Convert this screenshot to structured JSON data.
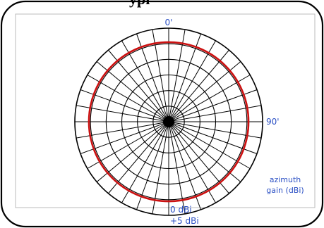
{
  "colors": {
    "frame": "#000000",
    "grid": "#000000",
    "pattern": "#cc1111",
    "label": "#2a4fc4",
    "background": "#ffffff"
  },
  "header": {
    "clipped_title": "ypi"
  },
  "chart_data": {
    "type": "polar",
    "title": "",
    "angle_labels": [
      {
        "text": "0'",
        "angle_deg": 0
      },
      {
        "text": "90'",
        "angle_deg": 90
      }
    ],
    "radial_labels": [
      "0 dBi",
      "+5 dBi"
    ],
    "axis_label": [
      "azimuth",
      "gain (dBi)"
    ],
    "angular_gridlines_deg": 10,
    "radial_rings": 6,
    "radial_range_fraction": [
      0,
      1
    ],
    "series": [
      {
        "pattern": "omnidirectional",
        "gain_fraction_of_outer_ring": 0.85
      }
    ]
  }
}
